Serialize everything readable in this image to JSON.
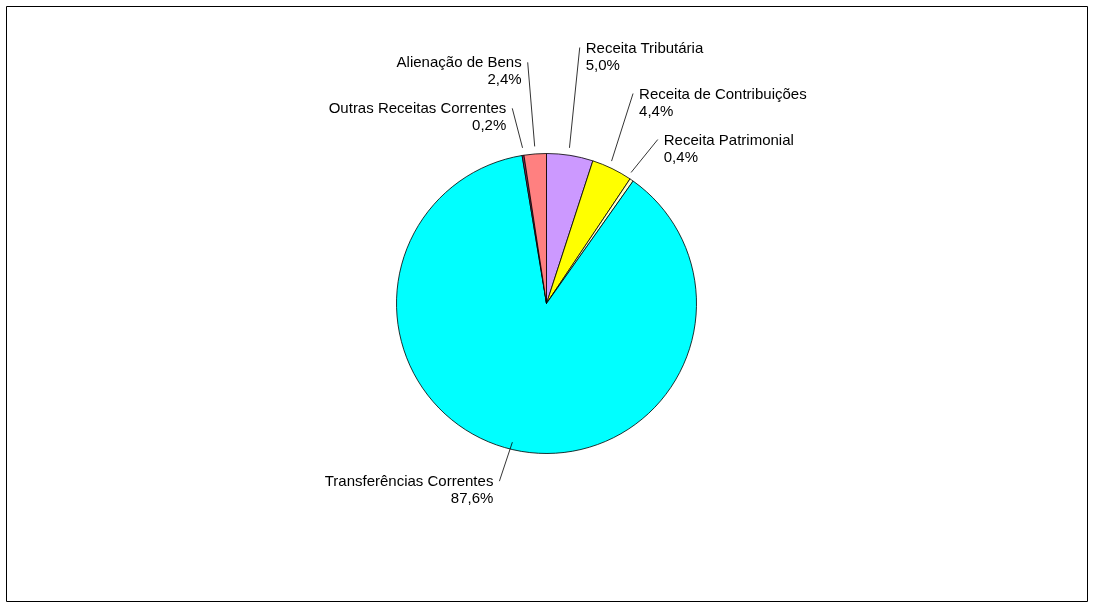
{
  "chart_data": {
    "type": "pie",
    "categories": [
      "Receita Tributária",
      "Receita de Contribuições",
      "Receita Patrimonial",
      "Transferências Correntes",
      "Outras Receitas Correntes",
      "Alienação de Bens"
    ],
    "values": [
      5.0,
      4.4,
      0.4,
      87.6,
      0.2,
      2.4
    ],
    "value_labels": [
      "5,0%",
      "4,4%",
      "0,4%",
      "87,6%",
      "0,2%",
      "2,4%"
    ],
    "colors": [
      "#cc99ff",
      "#ffff00",
      "#ffffcc",
      "#00ffff",
      "#993366",
      "#ff8080"
    ]
  }
}
